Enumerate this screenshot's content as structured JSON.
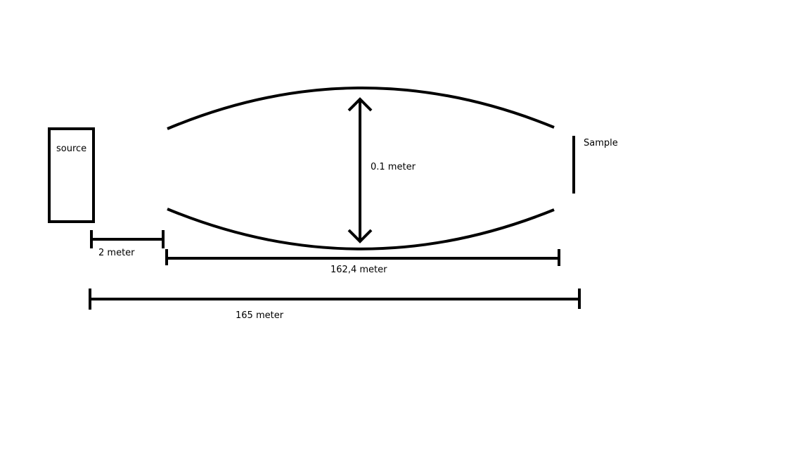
{
  "diagram": {
    "source_label": "source",
    "sample_label": "Sample",
    "width_label": "0.1 meter",
    "gap_label": "2 meter",
    "mirror_length_label": "162,4 meter",
    "total_length_label": "165 meter"
  },
  "colors": {
    "stroke": "#000000",
    "background": "#ffffff"
  }
}
